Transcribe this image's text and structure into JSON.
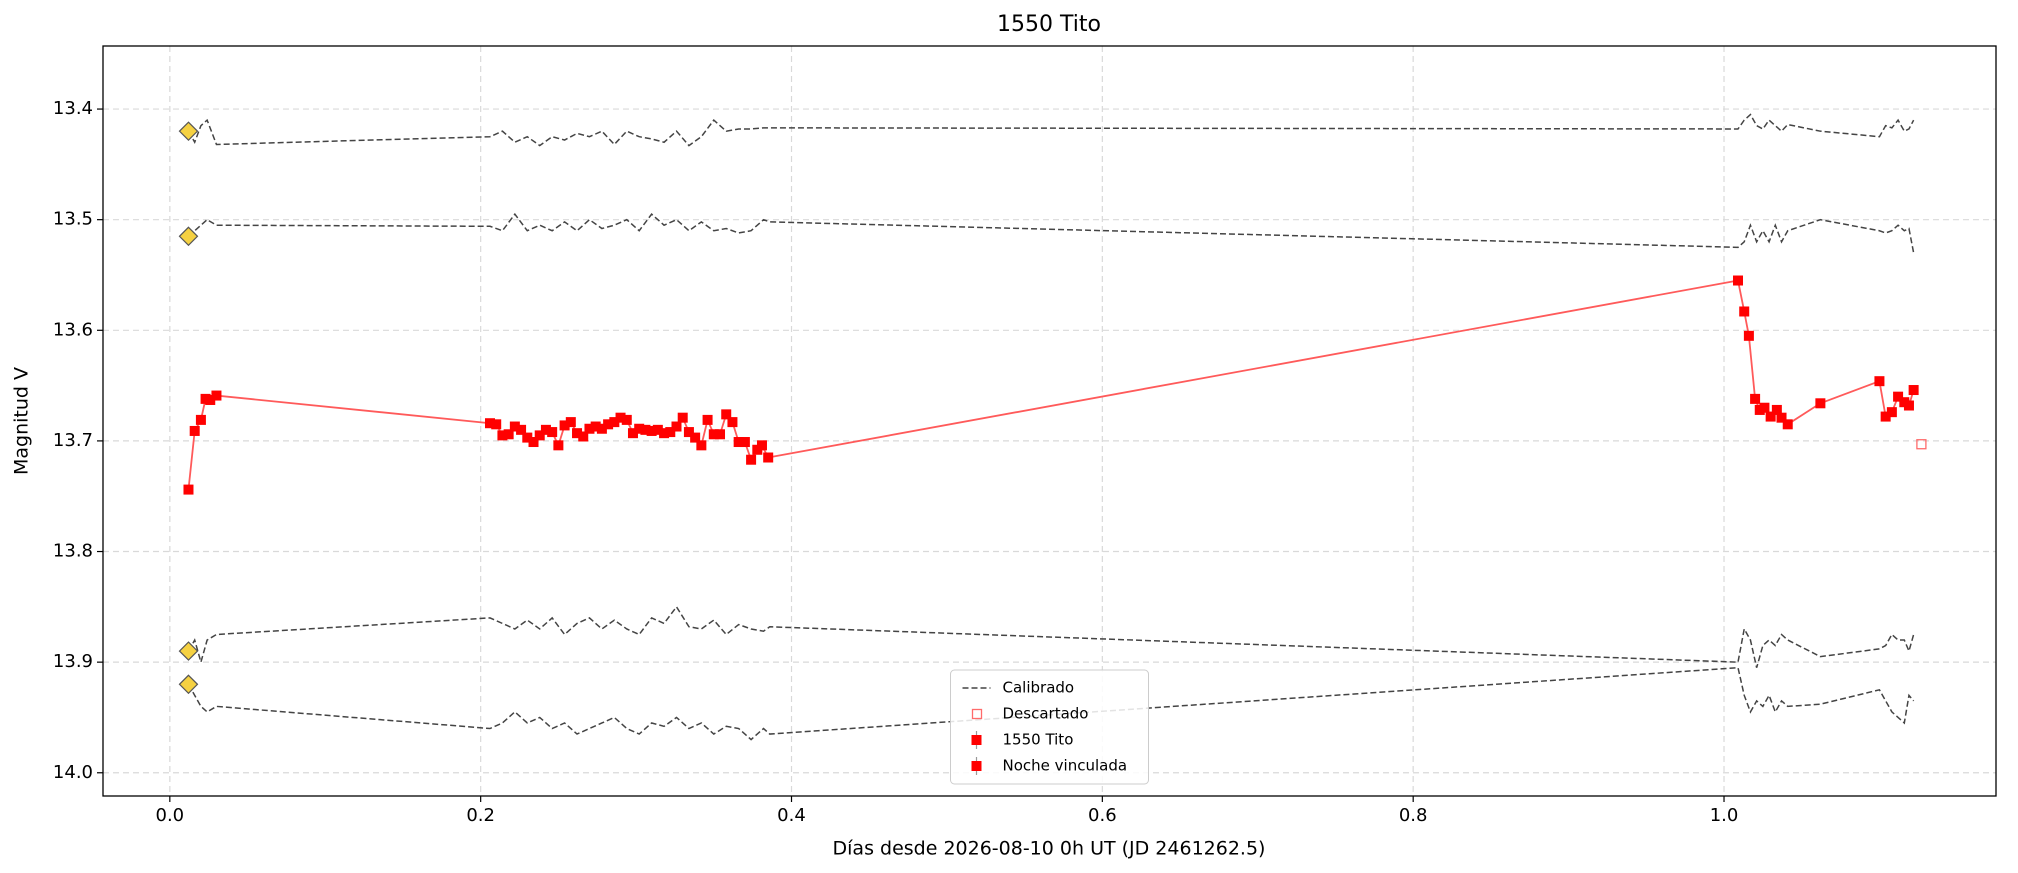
{
  "chart_data": {
    "type": "line",
    "title": "1550 Tito",
    "xlabel": "Días desde 2026-08-10 0h UT (JD 2461262.5)",
    "ylabel": "Magnitud V",
    "xlim": [
      -0.043,
      1.175
    ],
    "ylim": [
      13.343,
      14.021
    ],
    "y_inverted": true,
    "xticks": [
      {
        "value": 0,
        "label": "0.0"
      },
      0.2,
      0.4,
      0.6,
      0.8,
      {
        "value": 1,
        "label": "1.0"
      }
    ],
    "yticks": [
      13.4,
      13.5,
      13.6,
      13.7,
      13.8,
      13.9,
      {
        "value": 14,
        "label": "14.0"
      }
    ],
    "grid": true,
    "legend": {
      "loc": "lower center"
    },
    "comparison": {
      "name": "Calibrado",
      "color": "#444444",
      "marker_color": "#f5d142",
      "x": [
        0.012,
        0.016,
        0.02,
        0.024,
        0.03,
        0.206,
        0.214,
        0.222,
        0.23,
        0.238,
        0.246,
        0.254,
        0.262,
        0.27,
        0.278,
        0.286,
        0.294,
        0.302,
        0.31,
        0.318,
        0.326,
        0.334,
        0.342,
        0.35,
        0.358,
        0.366,
        0.374,
        0.382,
        0.386,
        1.009,
        1.013,
        1.017,
        1.021,
        1.025,
        1.029,
        1.033,
        1.037,
        1.041,
        1.062,
        1.1,
        1.104,
        1.108,
        1.112,
        1.116,
        1.119,
        1.122
      ],
      "series": [
        {
          "values": [
            13.42,
            13.43,
            13.415,
            13.41,
            13.432,
            13.425,
            13.42,
            13.43,
            13.425,
            13.433,
            13.425,
            13.428,
            13.422,
            13.425,
            13.42,
            13.432,
            13.42,
            13.425,
            13.427,
            13.43,
            13.42,
            13.433,
            13.425,
            13.41,
            13.42,
            13.418,
            13.418,
            13.417,
            13.417,
            13.418,
            13.41,
            13.405,
            13.415,
            13.418,
            13.41,
            13.415,
            13.42,
            13.414,
            13.42,
            13.425,
            13.415,
            13.417,
            13.41,
            13.42,
            13.418,
            13.41
          ]
        },
        {
          "values": [
            13.515,
            13.51,
            13.505,
            13.5,
            13.505,
            13.506,
            13.51,
            13.495,
            13.51,
            13.505,
            13.51,
            13.502,
            13.51,
            13.5,
            13.508,
            13.505,
            13.5,
            13.51,
            13.495,
            13.505,
            13.5,
            13.51,
            13.502,
            13.51,
            13.508,
            13.512,
            13.51,
            13.5,
            13.502,
            13.525,
            13.52,
            13.505,
            13.52,
            13.51,
            13.52,
            13.505,
            13.52,
            13.51,
            13.5,
            13.51,
            13.512,
            13.51,
            13.505,
            13.51,
            13.508,
            13.53
          ]
        },
        {
          "values": [
            13.89,
            13.88,
            13.9,
            13.88,
            13.875,
            13.86,
            13.865,
            13.87,
            13.862,
            13.87,
            13.86,
            13.875,
            13.865,
            13.86,
            13.87,
            13.862,
            13.87,
            13.875,
            13.86,
            13.865,
            13.85,
            13.868,
            13.87,
            13.862,
            13.875,
            13.866,
            13.87,
            13.872,
            13.868,
            13.9,
            13.87,
            13.88,
            13.905,
            13.885,
            13.88,
            13.885,
            13.875,
            13.88,
            13.895,
            13.888,
            13.885,
            13.875,
            13.88,
            13.88,
            13.89,
            13.875
          ]
        },
        {
          "values": [
            13.92,
            13.93,
            13.94,
            13.945,
            13.94,
            13.96,
            13.955,
            13.945,
            13.955,
            13.95,
            13.96,
            13.955,
            13.965,
            13.96,
            13.955,
            13.95,
            13.96,
            13.965,
            13.955,
            13.958,
            13.95,
            13.96,
            13.955,
            13.965,
            13.958,
            13.96,
            13.97,
            13.96,
            13.965,
            13.905,
            13.93,
            13.945,
            13.935,
            13.94,
            13.93,
            13.945,
            13.935,
            13.94,
            13.938,
            13.925,
            13.935,
            13.945,
            13.95,
            13.955,
            13.93,
            13.935
          ]
        }
      ]
    },
    "discarded": {
      "name": "Descartado",
      "color": "#ff6b6b",
      "x": [
        1.127
      ],
      "values": [
        13.703
      ]
    },
    "series": [
      {
        "name": "1550 Tito",
        "color": "#ff0000",
        "line_color": "#ff5a5a",
        "error": 0.004,
        "x": [
          0.012,
          0.016,
          0.02,
          0.023,
          0.026,
          0.03,
          0.206,
          0.21,
          0.214,
          0.218,
          0.222,
          0.226,
          0.23,
          0.234,
          0.238,
          0.242,
          0.246,
          0.25,
          0.254,
          0.258,
          0.262,
          0.266,
          0.27,
          0.274,
          0.278,
          0.282,
          0.286,
          0.29,
          0.294,
          0.298,
          0.302,
          0.306,
          0.31,
          0.314,
          0.318,
          0.322,
          0.326,
          0.33,
          0.334,
          0.338,
          0.342,
          0.346,
          0.35,
          0.354,
          0.358,
          0.362,
          0.366,
          0.37,
          0.374,
          0.378,
          0.381,
          0.385
        ],
        "values": [
          13.744,
          13.691,
          13.681,
          13.662,
          13.663,
          13.659,
          13.684,
          13.685,
          13.695,
          13.694,
          13.687,
          13.69,
          13.697,
          13.701,
          13.695,
          13.69,
          13.692,
          13.704,
          13.686,
          13.683,
          13.693,
          13.696,
          13.689,
          13.687,
          13.689,
          13.685,
          13.683,
          13.679,
          13.681,
          13.693,
          13.689,
          13.69,
          13.691,
          13.69,
          13.693,
          13.692,
          13.687,
          13.679,
          13.692,
          13.697,
          13.704,
          13.681,
          13.694,
          13.694,
          13.676,
          13.683,
          13.701,
          13.701,
          13.717,
          13.708,
          13.704,
          13.715
        ]
      },
      {
        "name": "Noche vinculada",
        "color": "#ff0000",
        "line_color": "#ff5a5a",
        "error": 0.004,
        "x": [
          1.009,
          1.013,
          1.016,
          1.02,
          1.023,
          1.026,
          1.03,
          1.034,
          1.037,
          1.041,
          1.062,
          1.1,
          1.104,
          1.108,
          1.112,
          1.116,
          1.119,
          1.122
        ],
        "values": [
          13.555,
          13.583,
          13.605,
          13.662,
          13.672,
          13.67,
          13.678,
          13.672,
          13.679,
          13.685,
          13.666,
          13.646,
          13.678,
          13.674,
          13.66,
          13.665,
          13.668,
          13.654
        ]
      }
    ]
  }
}
